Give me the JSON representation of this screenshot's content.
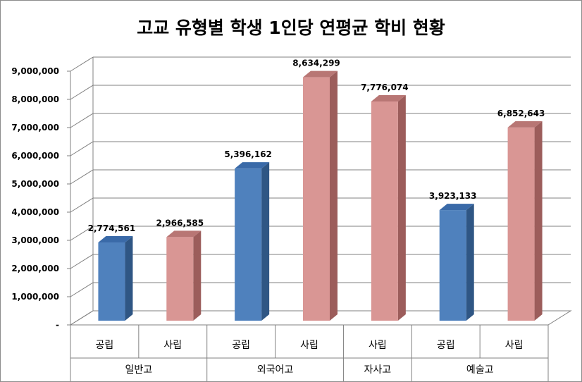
{
  "chart_data": {
    "type": "bar",
    "title": "고교 유형별 학생 1인당 연평균 학비 현황",
    "xlabel": "",
    "ylabel": "",
    "ylim": [
      0,
      9000000
    ],
    "y_ticks": [
      "-",
      "1,000,000",
      "2,000,000",
      "3,000,000",
      "4,000,000",
      "5,000,000",
      "6,000,000",
      "7,000,000",
      "8,000,000",
      "9,000,000"
    ],
    "grid": true,
    "three_d": true,
    "groups": [
      {
        "label": "일반고",
        "bars": [
          {
            "label": "공립",
            "value": 2774561,
            "value_label": "2,774,561"
          },
          {
            "label": "사립",
            "value": 2966585,
            "value_label": "2,966,585"
          }
        ]
      },
      {
        "label": "외국어고",
        "bars": [
          {
            "label": "공립",
            "value": 5396162,
            "value_label": "5,396,162"
          },
          {
            "label": "사립",
            "value": 8634299,
            "value_label": "8,634,299"
          }
        ]
      },
      {
        "label": "자사고",
        "bars": [
          {
            "label": "사립",
            "value": 7776074,
            "value_label": "7,776,074"
          }
        ]
      },
      {
        "label": "예술고",
        "bars": [
          {
            "label": "공립",
            "value": 3923133,
            "value_label": "3,923,133"
          },
          {
            "label": "사립",
            "value": 6852643,
            "value_label": "6,852,643"
          }
        ]
      }
    ],
    "colors": {
      "공립": {
        "front": "#4f81bd",
        "side": "#2f5684",
        "top": "#3a6aa8"
      },
      "사립": {
        "front": "#d99694",
        "side": "#9c5d5b",
        "top": "#b87674"
      },
      "grid": "#808080",
      "axis": "#808080"
    }
  }
}
